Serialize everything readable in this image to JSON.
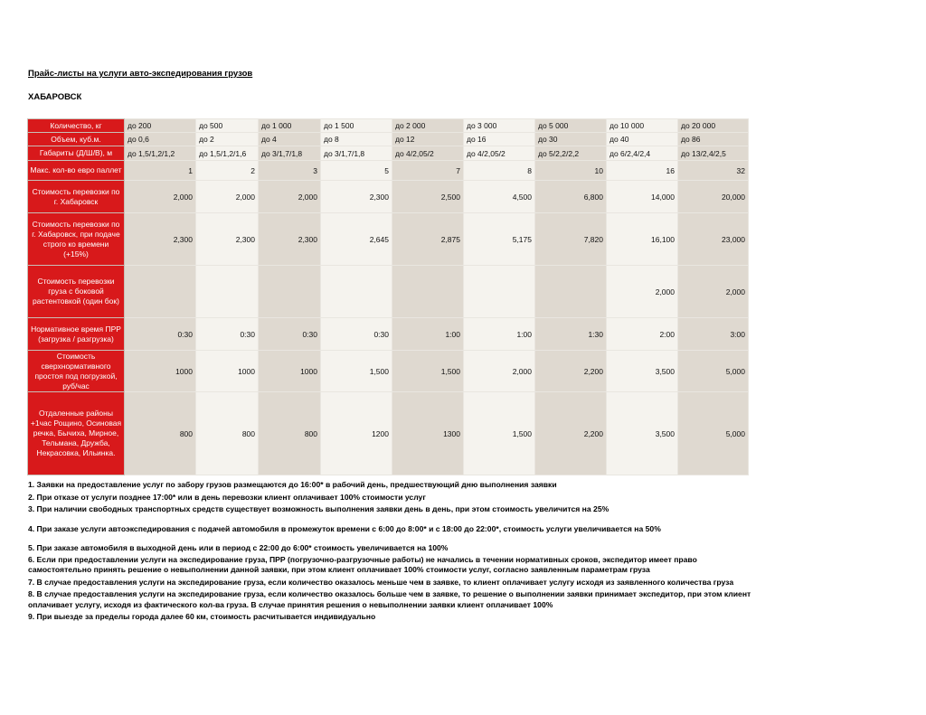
{
  "title": "Прайс-листы на услуги авто-экспедирования грузов",
  "city": "ХАБАРОВСК",
  "table": {
    "rows": [
      {
        "label": "Количество, кг",
        "align": "left",
        "values": [
          "до 200",
          "до 500",
          "до 1 000",
          "до 1 500",
          "до 2 000",
          "до 3 000",
          "до 5 000",
          "до 10 000",
          "до 20 000"
        ]
      },
      {
        "label": "Объем, куб.м.",
        "align": "left",
        "values": [
          "до 0,6",
          "до 2",
          "до 4",
          "до 8",
          "до 12",
          "до 16",
          "до 30",
          "до 40",
          "до 86"
        ]
      },
      {
        "label": "Габариты (Д/Ш/В), м",
        "align": "left",
        "values": [
          "до 1,5/1,2/1,2",
          "до 1,5/1,2/1,6",
          "до 3/1,7/1,8",
          "до 3/1,7/1,8",
          "до 4/2,05/2",
          "до 4/2,05/2",
          "до 5/2,2/2,2",
          "до 6/2,4/2,4",
          "до 13/2,4/2,5"
        ]
      },
      {
        "label": "Макс. кол-во евро паллет",
        "align": "right",
        "values": [
          "1",
          "2",
          "3",
          "5",
          "7",
          "8",
          "10",
          "16",
          "32"
        ]
      },
      {
        "label": "Стоимость перевозки по г. Хабаровск",
        "align": "right",
        "values": [
          "2,000",
          "2,000",
          "2,000",
          "2,300",
          "2,500",
          "4,500",
          "6,800",
          "14,000",
          "20,000"
        ]
      },
      {
        "label": "Стоимость перевозки по г. Хабаровск, при подаче строго ко времени (+15%)",
        "align": "right",
        "values": [
          "2,300",
          "2,300",
          "2,300",
          "2,645",
          "2,875",
          "5,175",
          "7,820",
          "16,100",
          "23,000"
        ]
      },
      {
        "label": "Стоимость перевозки груза с боковой растентовкой (один бок)",
        "align": "right",
        "values": [
          "",
          "",
          "",
          "",
          "",
          "",
          "",
          "2,000",
          "2,000"
        ]
      },
      {
        "label": "Нормативное время ПРР (загрузка / разгрузка)",
        "align": "right",
        "values": [
          "0:30",
          "0:30",
          "0:30",
          "0:30",
          "1:00",
          "1:00",
          "1:30",
          "2:00",
          "3:00"
        ]
      },
      {
        "label": "Стоимость сверхнормативного простоя под погрузкой, руб/час",
        "align": "right",
        "values": [
          "1000",
          "1000",
          "1000",
          "1,500",
          "1,500",
          "2,000",
          "2,200",
          "3,500",
          "5,000"
        ]
      },
      {
        "label": "Отдаленные районы +1час Рощино, Осиновая речка, Бычиха, Мирное, Тельмана, Дружба, Некрасовка, Ильинка.",
        "align": "right",
        "values": [
          "800",
          "800",
          "800",
          "1200",
          "1300",
          "1,500",
          "2,200",
          "3,500",
          "5,000"
        ]
      }
    ]
  },
  "notes": [
    "1. Заявки на предоставление услуг по забору грузов размещаются до 16:00* в рабочий день, предшествующий дню выполнения заявки",
    "2. При отказе от услуги позднее 17:00* или в день перевозки клиент оплачивает 100% стоимости услуг",
    "3. При наличии свободных транспортных средств существует возможность выполнения заявки день в день, при этом стоимость увеличится на 25%",
    "4. При заказе услуги автоэкспедирования с подачей автомобиля в промежуток времени с 6:00 до 8:00* и с 18:00 до 22:00*, стоимость услуги увеличивается на 50%",
    "5. При заказе автомобиля в выходной день или в период с 22:00 до 6:00* стоимость увеличивается на 100%",
    "6. Если при предоставлении услуги на экспедирование груза, ПРР (погрузочно-разгрузочные работы) не начались в течении нормативных сроков, экспедитор имеет право самостоятельно принять решение о невыполнении данной заявки, при этом клиент оплачивает 100% стоимости услуг, согласно заявленным параметрам груза",
    "7. В случае предоставления услуги на экспедирование груза, если количество оказалось меньше чем в заявке, то клиент оплачивает услугу исходя из заявленного количества груза",
    "8. В случае предоставления услуги на экспедирование груза, если количество оказалось больше чем в заявке, то решение о выполнении заявки принимает экспедитор, при этом клиент оплачивает услугу, исходя из фактического кол-ва груза. В случае принятия решения о невыполнении заявки клиент оплачивает 100%",
    "9. При выезде за пределы города далее 60 км, стоимость расчитывается индивидуально"
  ],
  "colors": {
    "header_red": "#d8191b",
    "cell_beige": "#dfd9d0",
    "cell_light": "#f5f3ee"
  }
}
